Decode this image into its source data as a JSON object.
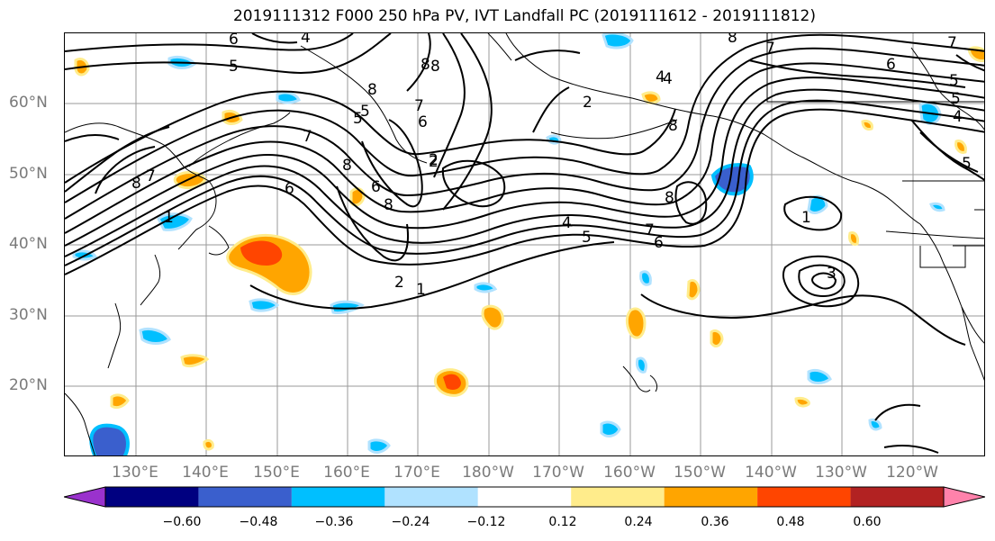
{
  "title": "2019111312 F000 250 hPa PV, IVT Landfall PC (2019111612 - 2019111812)",
  "lat_labels": [
    "60°N",
    "50°N",
    "40°N",
    "30°N",
    "20°N"
  ],
  "lon_labels": [
    "130°E",
    "140°E",
    "150°E",
    "160°E",
    "170°E",
    "180°W",
    "170°W",
    "160°W",
    "150°W",
    "140°W",
    "130°W",
    "120°W"
  ],
  "colorbar": {
    "ticks": [
      "−0.60",
      "−0.48",
      "−0.36",
      "−0.24",
      "−0.12",
      "0.12",
      "0.24",
      "0.36",
      "0.48",
      "0.60"
    ],
    "colors": [
      "#9a32cd",
      "#000080",
      "#3a5fcd",
      "#00bfff",
      "#b0e2ff",
      "#ffffff",
      "#ffec8b",
      "#ffa500",
      "#ff4500",
      "#b22222",
      "#ff82ab"
    ]
  },
  "contour_labels": [
    "6",
    "4",
    "5",
    "8",
    "7",
    "8",
    "6",
    "5",
    "5",
    "8",
    "7",
    "2",
    "6",
    "7",
    "1",
    "8",
    "6",
    "8",
    "2",
    "8",
    "4",
    "4",
    "5",
    "8",
    "7",
    "2",
    "6",
    "8",
    "8",
    "7",
    "2",
    "1",
    "4",
    "5",
    "7",
    "6",
    "1",
    "5",
    "4",
    "3",
    "5"
  ]
}
